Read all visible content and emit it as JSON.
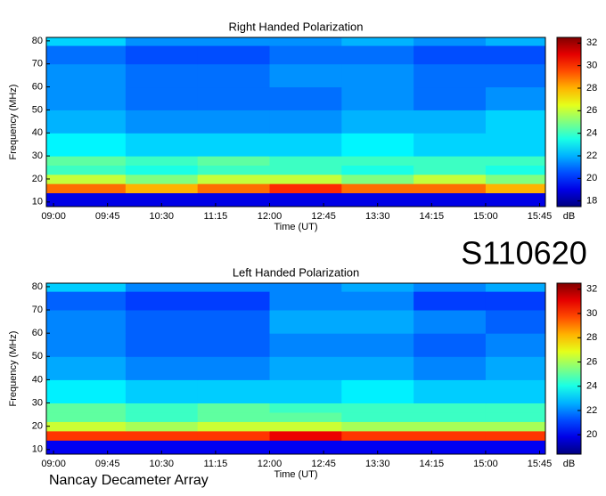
{
  "chart_data": [
    {
      "type": "heatmap",
      "title": "Right Handed Polarization",
      "xlabel": "Time (UT)",
      "ylabel": "Frequency (MHz)",
      "xlim": [
        8.9,
        15.83
      ],
      "xticks": [
        {
          "value": 9.0,
          "label": "09:00"
        },
        {
          "value": 9.75,
          "label": "09:45"
        },
        {
          "value": 10.5,
          "label": "10:30"
        },
        {
          "value": 11.25,
          "label": "11:15"
        },
        {
          "value": 12.0,
          "label": "12:00"
        },
        {
          "value": 12.75,
          "label": "12:45"
        },
        {
          "value": 13.5,
          "label": "13:30"
        },
        {
          "value": 14.25,
          "label": "14:15"
        },
        {
          "value": 15.0,
          "label": "15:00"
        },
        {
          "value": 15.75,
          "label": "15:45"
        }
      ],
      "ylim": [
        8,
        81.5
      ],
      "yticks": [
        10,
        20,
        30,
        40,
        50,
        60,
        70,
        80
      ],
      "x_bins": [
        8.9,
        10,
        11,
        12,
        13,
        14,
        15,
        15.83
      ],
      "y_bins": [
        8,
        14,
        18,
        22,
        26,
        30,
        40,
        50,
        60,
        70,
        78,
        81.5
      ],
      "z": [
        [
          19,
          19,
          19,
          19,
          19,
          19,
          19
        ],
        [
          29,
          28,
          29,
          30,
          29,
          29,
          28
        ],
        [
          26,
          25,
          26,
          26,
          25,
          26,
          25
        ],
        [
          24,
          23.5,
          24,
          24,
          23.5,
          24,
          23.5
        ],
        [
          24.5,
          24,
          24.5,
          24,
          24,
          24,
          24
        ],
        [
          23,
          22.5,
          22.5,
          22.5,
          23,
          22.5,
          22.5
        ],
        [
          22,
          21.5,
          21.5,
          21.5,
          22,
          22,
          22.5
        ],
        [
          21.5,
          21,
          21,
          21,
          21.5,
          21,
          21.5
        ],
        [
          21.5,
          21,
          21,
          21.5,
          21.5,
          21,
          21
        ],
        [
          21,
          20.5,
          20.5,
          21,
          21,
          20.5,
          20.5
        ],
        [
          22.5,
          21.5,
          21.5,
          21.5,
          22,
          21.5,
          22
        ]
      ],
      "colorbar": {
        "label": "dB",
        "clim": [
          17.5,
          32.5
        ],
        "ticks": [
          18,
          20,
          22,
          24,
          26,
          28,
          30,
          32
        ]
      }
    },
    {
      "type": "heatmap",
      "title": "Left Handed Polarization",
      "xlabel": "Time (UT)",
      "ylabel": "Frequency (MHz)",
      "xlim": [
        8.9,
        15.83
      ],
      "xticks": [
        {
          "value": 9.0,
          "label": "09:00"
        },
        {
          "value": 9.75,
          "label": "09:45"
        },
        {
          "value": 10.5,
          "label": "10:30"
        },
        {
          "value": 11.25,
          "label": "11:15"
        },
        {
          "value": 12.0,
          "label": "12:00"
        },
        {
          "value": 12.75,
          "label": "12:45"
        },
        {
          "value": 13.5,
          "label": "13:30"
        },
        {
          "value": 14.25,
          "label": "14:15"
        },
        {
          "value": 15.0,
          "label": "15:00"
        },
        {
          "value": 15.75,
          "label": "15:45"
        }
      ],
      "ylim": [
        8,
        81.5
      ],
      "yticks": [
        10,
        20,
        30,
        40,
        50,
        60,
        70,
        80
      ],
      "x_bins": [
        8.9,
        10,
        11,
        12,
        13,
        14,
        15,
        15.83
      ],
      "y_bins": [
        8,
        14,
        18,
        22,
        26,
        30,
        40,
        50,
        60,
        70,
        78,
        81.5
      ],
      "z": [
        [
          20,
          20,
          20,
          20,
          20,
          20,
          20
        ],
        [
          30,
          30,
          30,
          31,
          30,
          30,
          30
        ],
        [
          26.5,
          26,
          26.5,
          26.5,
          26,
          26,
          26
        ],
        [
          25,
          24.5,
          25,
          25,
          24.5,
          24.5,
          24.5
        ],
        [
          25,
          24.5,
          25,
          24.5,
          24.5,
          24.5,
          24.5
        ],
        [
          23.5,
          23,
          23,
          23,
          23.5,
          23,
          23
        ],
        [
          22.5,
          22,
          22,
          22.5,
          22.5,
          22,
          22.5
        ],
        [
          22,
          21.5,
          21.5,
          22,
          22,
          21.5,
          22
        ],
        [
          22,
          21.5,
          21.5,
          22.5,
          22.5,
          22,
          21.5
        ],
        [
          21.5,
          21,
          21,
          22,
          22,
          21,
          21
        ],
        [
          23,
          22,
          22,
          22,
          22.5,
          22,
          22.5
        ]
      ],
      "colorbar": {
        "label": "dB",
        "clim": [
          18.4,
          32.5
        ],
        "ticks": [
          20,
          22,
          24,
          26,
          28,
          30,
          32
        ]
      }
    }
  ],
  "date_code": "S110620",
  "footer": "Nancay Decameter Array"
}
